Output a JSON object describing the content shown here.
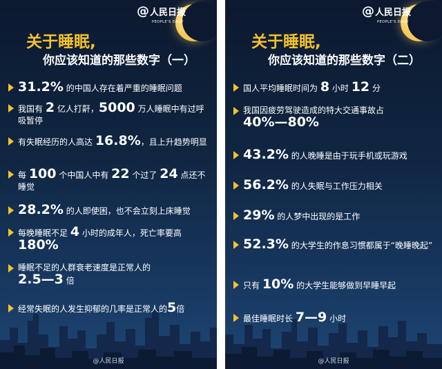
{
  "logo": {
    "text": "人民日报",
    "sub": "PEOPLE'S DAILY"
  },
  "watermark": "@人民日报",
  "left": {
    "title": "关于睡眠,",
    "subtitle": "你应该知道的那些数字（一）",
    "items": [
      {
        "a": "31.2%",
        "b": " 的中国人存在着严重的睡眠问题"
      },
      {
        "a": "我国有 ",
        "b": "2",
        "c": " 亿人打鼾，",
        "d": "5000",
        "e": " 万人睡眠中有过呼吸暂停"
      },
      {
        "a": "有失眠经历的人高达 ",
        "b": "16.8%",
        "c": "，且上升趋势明显"
      },
      {
        "a": "每 ",
        "b": "100",
        "c": " 个中国人中有 ",
        "d": "22",
        "e": " 个过了 ",
        "f": "24",
        "g": " 点还不睡觉"
      },
      {
        "a": "28.2%",
        "b": " 的人即使困，也不会立刻上床睡觉"
      },
      {
        "a": "每晚睡眠不足 ",
        "b": "4",
        "c": " 小时的成年人，死亡率要高",
        "d": "180%"
      },
      {
        "a": "睡眠不足的人群衰老速度是正常人的",
        "b": "2.5—3",
        "c": " 倍"
      },
      {
        "a": "经常失眠的人发生抑郁的几率是正常人的",
        "b": "5",
        "c": "倍"
      }
    ]
  },
  "right": {
    "title": "关于睡眠,",
    "subtitle": "你应该知道的那些数字（二）",
    "items": [
      {
        "a": "国人平均睡眠时间为 ",
        "b": "8",
        "c": " 小时 ",
        "d": "12",
        "e": " 分"
      },
      {
        "a": "我国因疲劳驾驶造成的特大交通事故占",
        "b": "40%—80%"
      },
      {
        "a": "43.2%",
        "b": " 的人晚睡是由于玩手机或玩游戏"
      },
      {
        "a": "56.2%",
        "b": " 的人失眠与工作压力相关"
      },
      {
        "a": "29%",
        "b": " 的人梦中出现的是工作"
      },
      {
        "a": "52.3%",
        "b": " 的大学生的作息习惯都属于“晚睡晚起”"
      },
      {
        "a": "只有 ",
        "b": "10%",
        "c": " 的大学生能够做到早睡早起"
      },
      {
        "a": "最佳睡眠时长 ",
        "b": "7—9",
        "c": " 小时"
      }
    ]
  }
}
